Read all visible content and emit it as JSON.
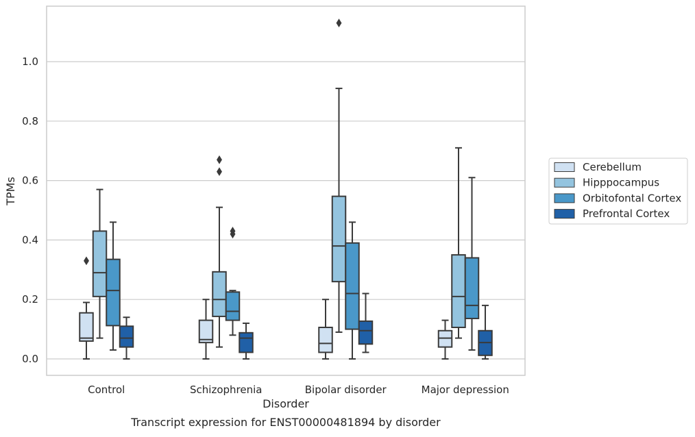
{
  "chart_data": {
    "type": "box",
    "title": "",
    "caption": "Transcript expression for ENST00000481894 by disorder",
    "xlabel": "Disorder",
    "ylabel": "TPMs",
    "ylim": [
      -0.055,
      1.18
    ],
    "yticks": [
      0.0,
      0.2,
      0.4,
      0.6,
      0.8,
      1.0
    ],
    "ytick_labels": [
      "0.0",
      "0.2",
      "0.4",
      "0.6",
      "0.8",
      "1.0"
    ],
    "grid": "horizontal",
    "legend_position": "right",
    "categories": [
      "Control",
      "Schizophrenia",
      "Bipolar disorder",
      "Major depression"
    ],
    "series": [
      {
        "name": "Cerebellum",
        "color": "#d0e1f2",
        "boxes": [
          {
            "min": 0.0,
            "q1": 0.06,
            "median": 0.07,
            "q3": 0.155,
            "max": 0.19,
            "outliers": [
              0.33
            ]
          },
          {
            "min": 0.0,
            "q1": 0.055,
            "median": 0.065,
            "q3": 0.13,
            "max": 0.2,
            "outliers": []
          },
          {
            "min": 0.0,
            "q1": 0.022,
            "median": 0.052,
            "q3": 0.106,
            "max": 0.2,
            "outliers": []
          },
          {
            "min": 0.0,
            "q1": 0.04,
            "median": 0.07,
            "q3": 0.095,
            "max": 0.13,
            "outliers": []
          }
        ]
      },
      {
        "name": "Hipppocampus",
        "color": "#94c4df",
        "boxes": [
          {
            "min": 0.07,
            "q1": 0.21,
            "median": 0.29,
            "q3": 0.43,
            "max": 0.57,
            "outliers": []
          },
          {
            "min": 0.04,
            "q1": 0.143,
            "median": 0.2,
            "q3": 0.293,
            "max": 0.51,
            "outliers": [
              0.63,
              0.67
            ]
          },
          {
            "min": 0.09,
            "q1": 0.26,
            "median": 0.38,
            "q3": 0.547,
            "max": 0.91,
            "outliers": [
              1.13
            ]
          },
          {
            "min": 0.07,
            "q1": 0.106,
            "median": 0.21,
            "q3": 0.35,
            "max": 0.71,
            "outliers": []
          }
        ]
      },
      {
        "name": "Orbitofontal Cortex",
        "color": "#4a98c9",
        "boxes": [
          {
            "min": 0.03,
            "q1": 0.112,
            "median": 0.23,
            "q3": 0.335,
            "max": 0.46,
            "outliers": []
          },
          {
            "min": 0.08,
            "q1": 0.13,
            "median": 0.16,
            "q3": 0.225,
            "max": 0.23,
            "outliers": [
              0.42,
              0.43
            ]
          },
          {
            "min": 0.0,
            "q1": 0.1,
            "median": 0.22,
            "q3": 0.39,
            "max": 0.46,
            "outliers": []
          },
          {
            "min": 0.03,
            "q1": 0.136,
            "median": 0.18,
            "q3": 0.34,
            "max": 0.61,
            "outliers": []
          }
        ]
      },
      {
        "name": "Prefrontal Cortex",
        "color": "#2060a7",
        "boxes": [
          {
            "min": 0.0,
            "q1": 0.04,
            "median": 0.07,
            "q3": 0.11,
            "max": 0.14,
            "outliers": []
          },
          {
            "min": 0.0,
            "q1": 0.022,
            "median": 0.07,
            "q3": 0.088,
            "max": 0.12,
            "outliers": []
          },
          {
            "min": 0.022,
            "q1": 0.05,
            "median": 0.095,
            "q3": 0.127,
            "max": 0.22,
            "outliers": []
          },
          {
            "min": 0.0,
            "q1": 0.012,
            "median": 0.055,
            "q3": 0.095,
            "max": 0.18,
            "outliers": []
          }
        ]
      }
    ]
  }
}
